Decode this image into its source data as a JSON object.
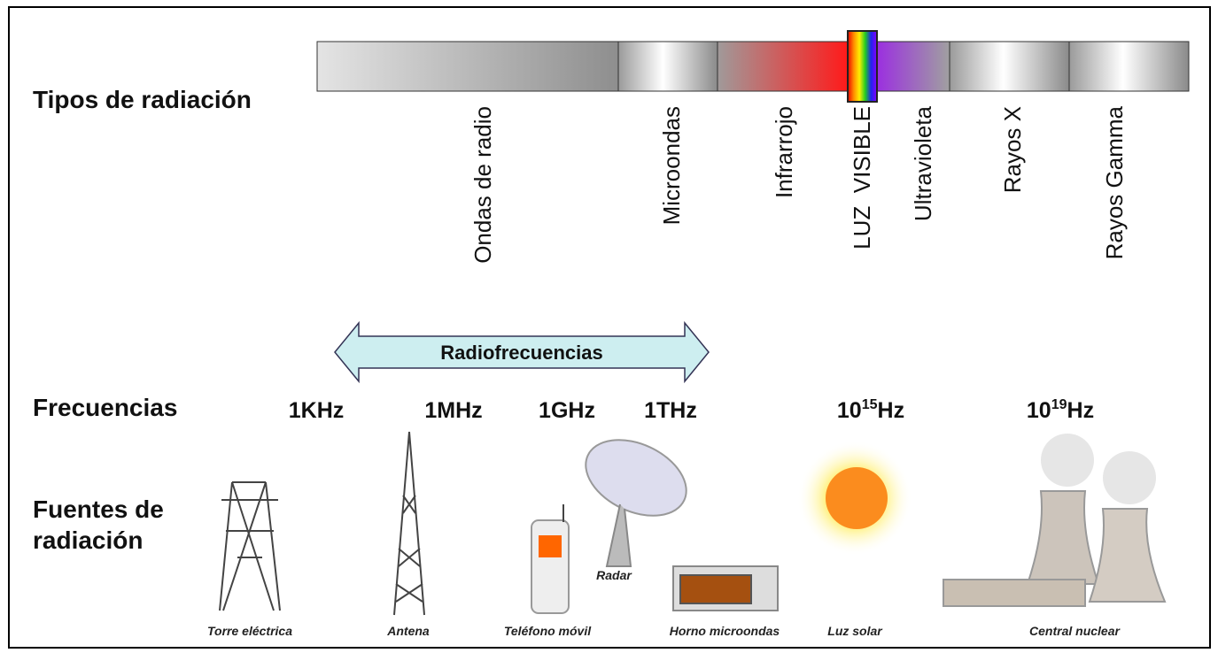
{
  "rows": {
    "types": "Tipos de radiación",
    "frequencies": "Frecuencias",
    "sources_line1": "Fuentes de",
    "sources_line2": "radiación"
  },
  "radiation_types": [
    "Ondas de radio",
    "Microondas",
    "Infrarrojo",
    "LUZ  VISIBLE",
    "Ultravioleta",
    "Rayos X",
    "Rayos Gamma"
  ],
  "band_label": "Radiofrecuencias",
  "frequencies": [
    {
      "text": "1KHz"
    },
    {
      "text": "1MHz"
    },
    {
      "text": "1GHz"
    },
    {
      "text": "1THz"
    },
    {
      "base": "10",
      "exponent": "15",
      "unit": "Hz"
    },
    {
      "base": "10",
      "exponent": "19",
      "unit": "Hz"
    }
  ],
  "sources": [
    "Torre eléctrica",
    "Antena",
    "Teléfono móvil",
    "Radar",
    "Horno microondas",
    "Luz solar",
    "Central nuclear"
  ]
}
